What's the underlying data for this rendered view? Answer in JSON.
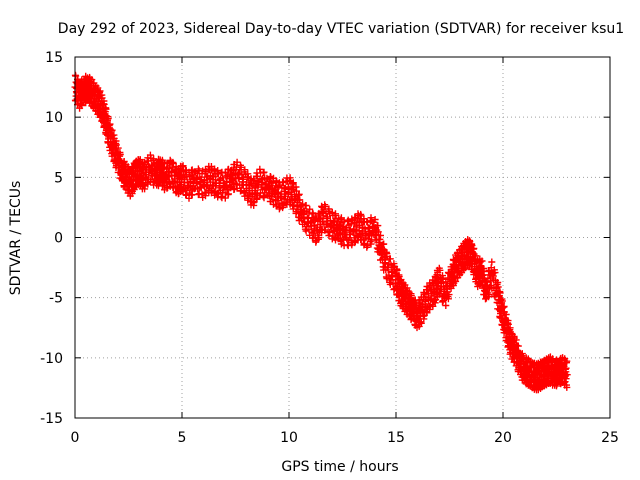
{
  "chart_data": {
    "type": "scatter",
    "title": "Day 292 of 2023, Sidereal Day-to-day VTEC variation (SDTVAR) for receiver ksu1",
    "xlabel": "GPS time / hours",
    "ylabel": "SDTVAR / TECUs",
    "xlim": [
      0,
      25
    ],
    "ylim": [
      -15,
      15
    ],
    "xticks": [
      0,
      5,
      10,
      15,
      20,
      25
    ],
    "yticks": [
      -15,
      -10,
      -5,
      0,
      5,
      10,
      15
    ],
    "grid": true,
    "marker": "+",
    "series_color": "#ff0000",
    "series": [
      {
        "name": "SDTVAR",
        "x": [
          0.0,
          0.2,
          0.4,
          0.6,
          0.8,
          1.0,
          1.2,
          1.4,
          1.6,
          1.8,
          2.0,
          2.2,
          2.4,
          2.6,
          2.8,
          3.0,
          3.2,
          3.5,
          3.8,
          4.0,
          4.2,
          4.5,
          4.8,
          5.0,
          5.3,
          5.6,
          6.0,
          6.3,
          6.6,
          7.0,
          7.3,
          7.6,
          8.0,
          8.3,
          8.6,
          9.0,
          9.3,
          9.6,
          10.0,
          10.3,
          10.6,
          11.0,
          11.3,
          11.6,
          12.0,
          12.3,
          12.6,
          13.0,
          13.3,
          13.6,
          14.0,
          14.3,
          14.6,
          15.0,
          15.2,
          15.4,
          15.6,
          15.8,
          16.0,
          16.2,
          16.5,
          16.8,
          17.0,
          17.3,
          17.6,
          17.8,
          18.0,
          18.2,
          18.4,
          18.6,
          18.8,
          19.0,
          19.2,
          19.5,
          19.8,
          20.0,
          20.2,
          20.4,
          20.6,
          20.8,
          21.0,
          21.2,
          21.4,
          21.6,
          21.8,
          22.0,
          22.2,
          22.4,
          22.6,
          22.8,
          23.0
        ],
        "values": [
          12.5,
          11.8,
          12.2,
          12.4,
          12.0,
          11.5,
          11.0,
          10.0,
          8.5,
          7.5,
          6.5,
          5.5,
          5.0,
          4.5,
          5.2,
          5.5,
          5.0,
          5.8,
          5.2,
          5.6,
          5.0,
          5.4,
          4.6,
          5.0,
          4.3,
          4.8,
          4.4,
          4.9,
          4.5,
          4.3,
          4.9,
          5.2,
          4.4,
          3.6,
          4.6,
          4.2,
          3.8,
          3.4,
          4.0,
          3.2,
          2.0,
          1.2,
          0.6,
          1.8,
          1.0,
          0.8,
          0.3,
          0.5,
          1.0,
          0.2,
          0.8,
          -1.0,
          -2.5,
          -3.5,
          -4.5,
          -5.0,
          -5.5,
          -6.0,
          -6.5,
          -6.0,
          -5.0,
          -4.5,
          -3.5,
          -4.8,
          -3.2,
          -2.5,
          -2.0,
          -1.5,
          -1.2,
          -1.8,
          -3.0,
          -2.8,
          -4.5,
          -3.0,
          -5.2,
          -6.5,
          -7.8,
          -9.0,
          -9.5,
          -10.5,
          -11.0,
          -11.2,
          -11.5,
          -11.6,
          -11.4,
          -11.2,
          -11.0,
          -11.3,
          -11.2,
          -11.0,
          -11.4
        ]
      }
    ]
  }
}
